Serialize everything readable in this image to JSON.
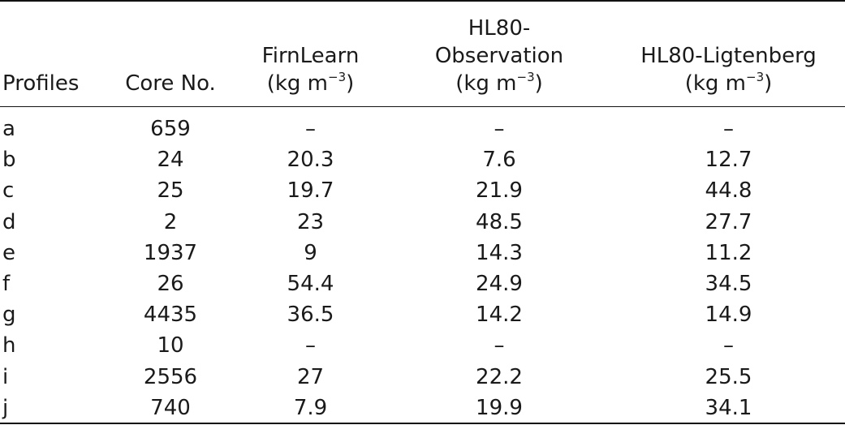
{
  "table": {
    "headers": {
      "profiles": "Profiles",
      "core_no": "Core No.",
      "firnlearn": "FirnLearn",
      "hl80_obs_line1": "HL80-",
      "hl80_obs_line2": "Observation",
      "hl80_lig": "HL80-Ligtenberg",
      "unit_base": "(kg m",
      "unit_exp": "−3",
      "unit_close": ")"
    },
    "rows": [
      {
        "profile": "a",
        "core": "659",
        "firnlearn": "–",
        "obs": "–",
        "lig": "–"
      },
      {
        "profile": "b",
        "core": "24",
        "firnlearn": "20.3",
        "obs": "7.6",
        "lig": "12.7"
      },
      {
        "profile": "c",
        "core": "25",
        "firnlearn": "19.7",
        "obs": "21.9",
        "lig": "44.8"
      },
      {
        "profile": "d",
        "core": "2",
        "firnlearn": "23",
        "obs": "48.5",
        "lig": "27.7"
      },
      {
        "profile": "e",
        "core": "1937",
        "firnlearn": "9",
        "obs": "14.3",
        "lig": "11.2"
      },
      {
        "profile": "f",
        "core": "26",
        "firnlearn": "54.4",
        "obs": "24.9",
        "lig": "34.5"
      },
      {
        "profile": "g",
        "core": "4435",
        "firnlearn": "36.5",
        "obs": "14.2",
        "lig": "14.9"
      },
      {
        "profile": "h",
        "core": "10",
        "firnlearn": "–",
        "obs": "–",
        "lig": "–"
      },
      {
        "profile": "i",
        "core": "2556",
        "firnlearn": "27",
        "obs": "22.2",
        "lig": "25.5"
      },
      {
        "profile": "j",
        "core": "740",
        "firnlearn": "7.9",
        "obs": "19.9",
        "lig": "34.1"
      }
    ]
  }
}
